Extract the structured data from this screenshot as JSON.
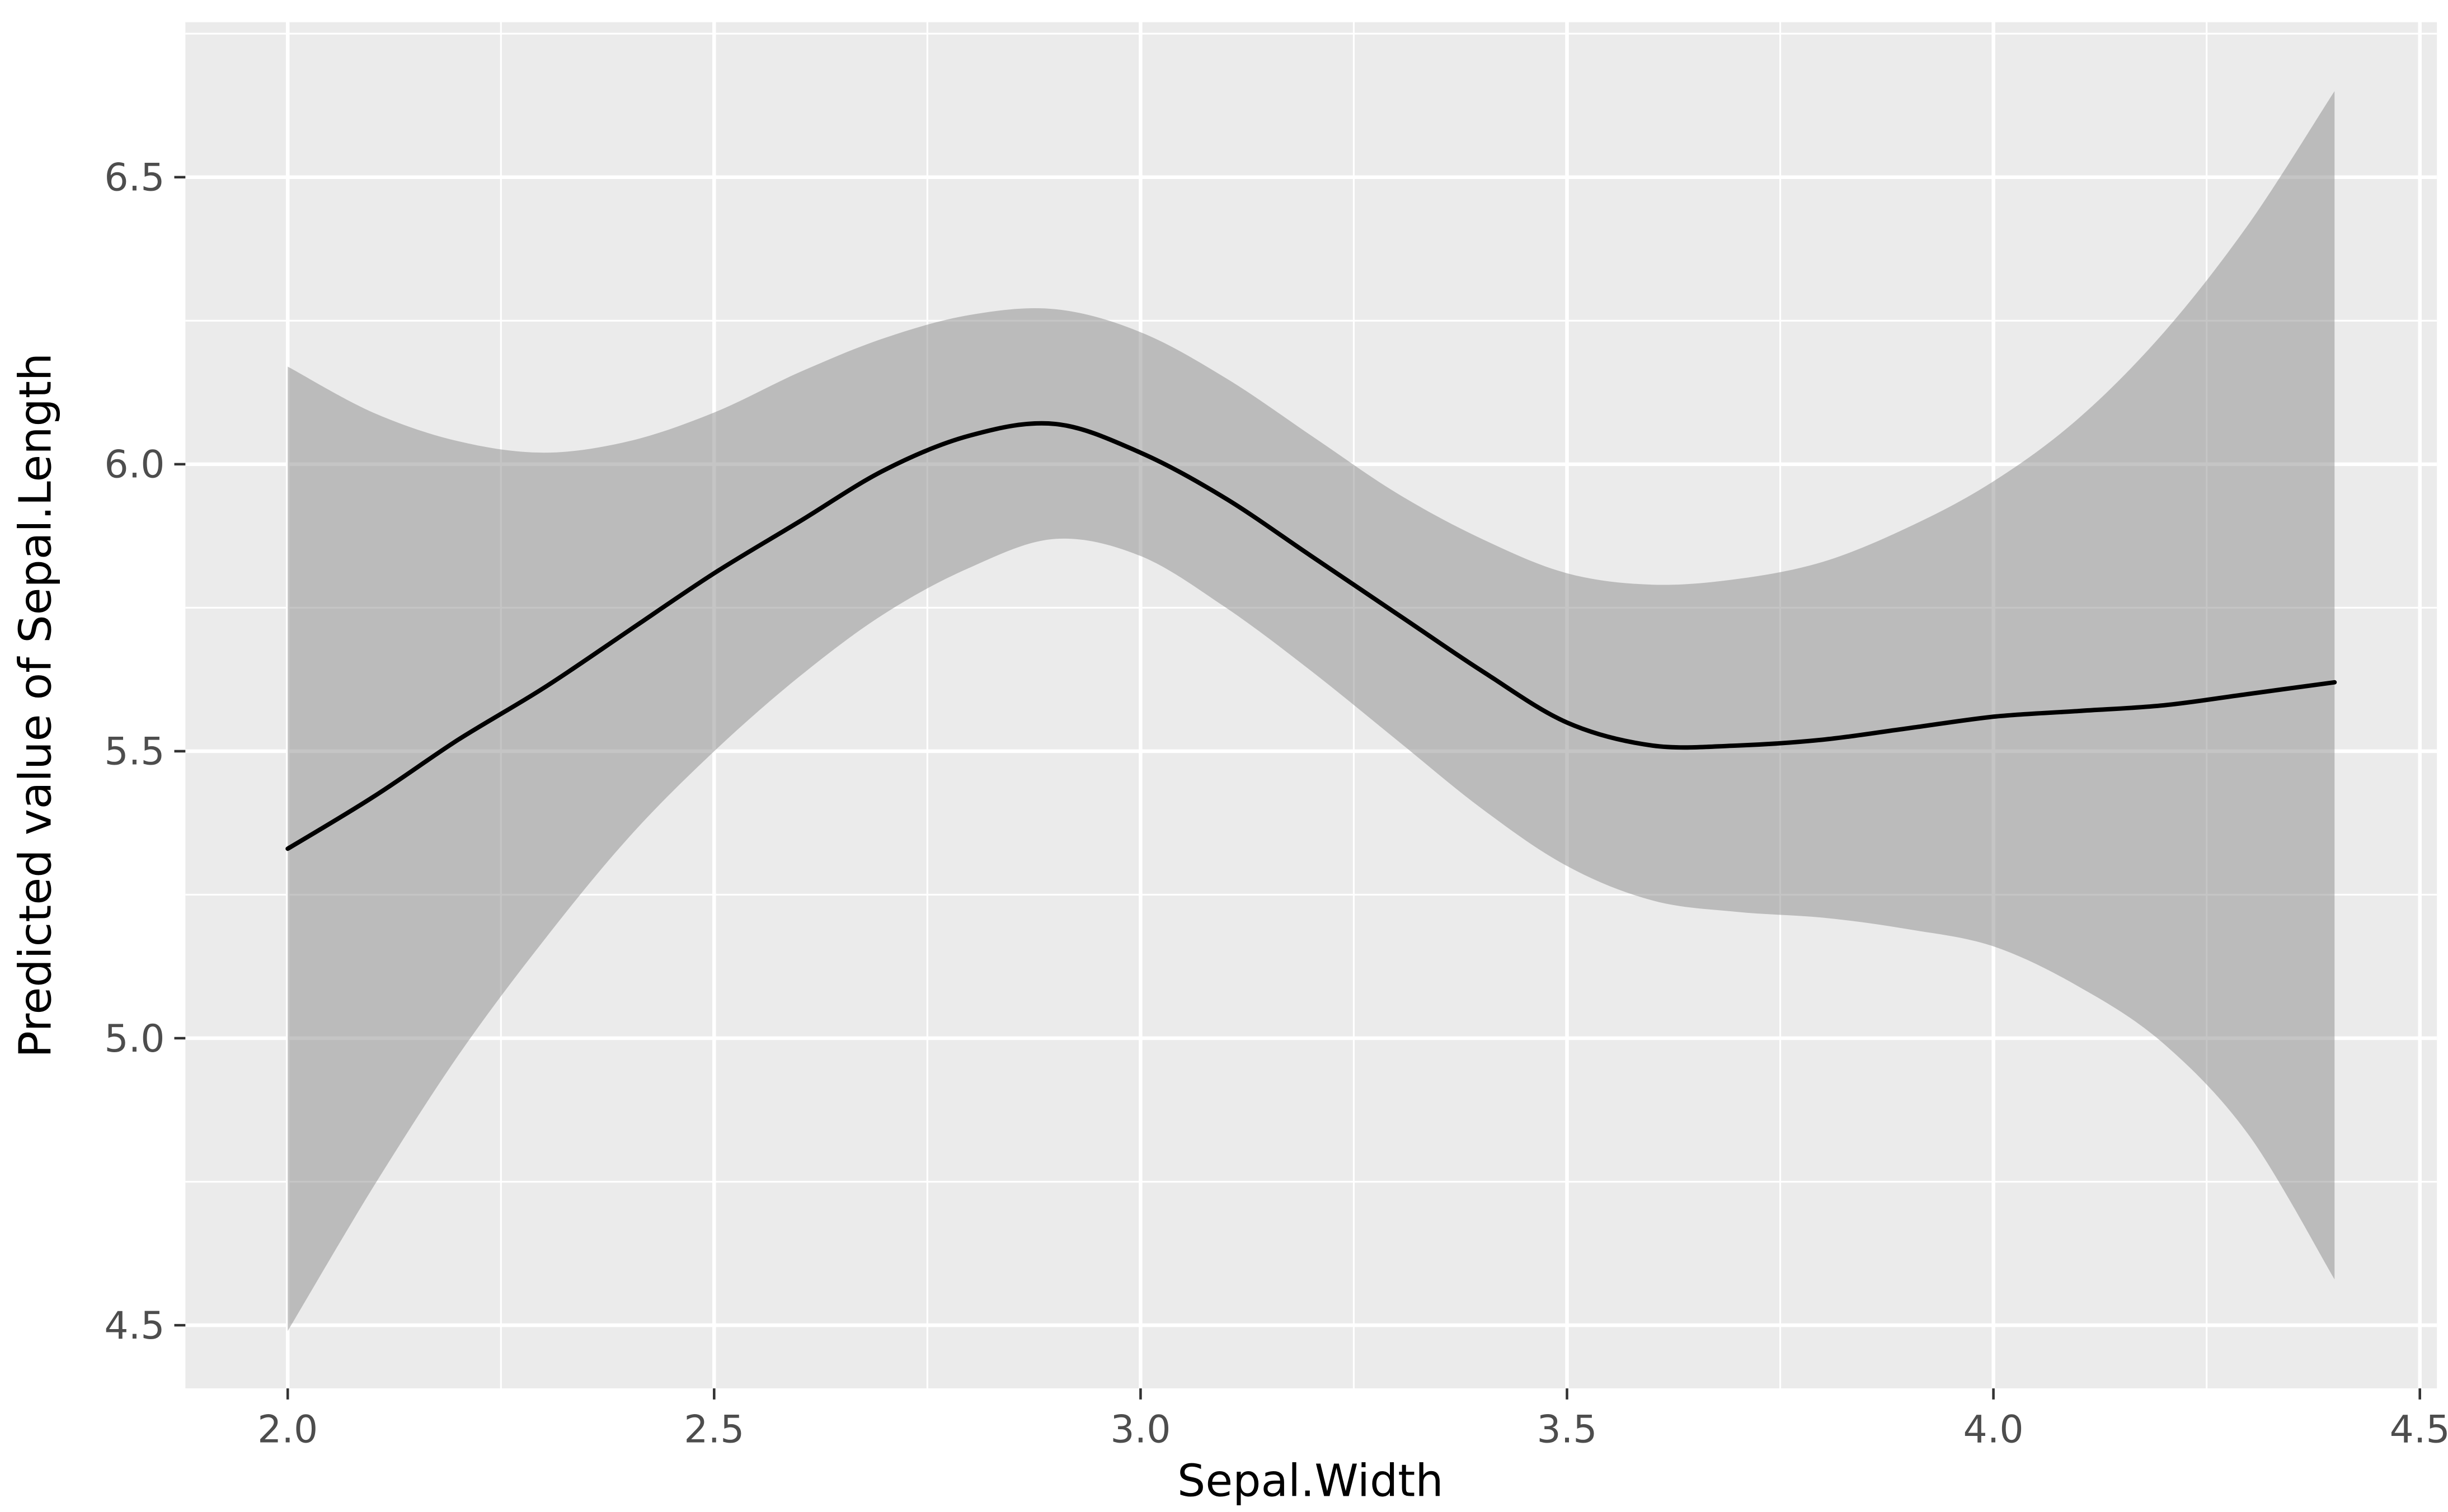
{
  "chart_data": {
    "type": "line",
    "title": "",
    "xlabel": "Sepal.Width",
    "ylabel": "Predicted value of Sepal.Length",
    "xlim": [
      1.88,
      4.52
    ],
    "ylim": [
      4.39,
      6.77
    ],
    "x_ticks": [
      2.0,
      2.5,
      3.0,
      3.5,
      4.0,
      4.5
    ],
    "x_tick_labels": [
      "2.0",
      "2.5",
      "3.0",
      "3.5",
      "4.0",
      "4.5"
    ],
    "y_ticks": [
      4.5,
      5.0,
      5.5,
      6.0,
      6.5
    ],
    "y_tick_labels": [
      "4.5",
      "5.0",
      "5.5",
      "6.0",
      "6.5"
    ],
    "x_minor_ticks": [
      2.25,
      2.75,
      3.25,
      3.75,
      4.25
    ],
    "y_minor_ticks": [
      4.75,
      5.25,
      5.75,
      6.25,
      6.75
    ],
    "grid": true,
    "legend": "none",
    "series": [
      {
        "name": "smooth-fit-with-confidence-band",
        "x": [
          2.0,
          2.1,
          2.2,
          2.3,
          2.4,
          2.5,
          2.6,
          2.7,
          2.8,
          2.9,
          3.0,
          3.1,
          3.2,
          3.3,
          3.4,
          3.5,
          3.6,
          3.7,
          3.8,
          3.9,
          4.0,
          4.1,
          4.2,
          4.3,
          4.4
        ],
        "y": [
          5.33,
          5.42,
          5.52,
          5.61,
          5.71,
          5.81,
          5.9,
          5.99,
          6.05,
          6.07,
          6.02,
          5.94,
          5.84,
          5.74,
          5.64,
          5.55,
          5.51,
          5.51,
          5.52,
          5.54,
          5.56,
          5.57,
          5.58,
          5.6,
          5.62
        ],
        "upper": [
          6.17,
          6.09,
          6.04,
          6.02,
          6.04,
          6.09,
          6.16,
          6.22,
          6.26,
          6.27,
          6.23,
          6.15,
          6.05,
          5.95,
          5.87,
          5.81,
          5.79,
          5.8,
          5.83,
          5.89,
          5.97,
          6.08,
          6.23,
          6.42,
          6.65
        ],
        "lower": [
          4.49,
          4.74,
          4.97,
          5.17,
          5.35,
          5.5,
          5.63,
          5.74,
          5.82,
          5.87,
          5.84,
          5.75,
          5.64,
          5.52,
          5.4,
          5.3,
          5.24,
          5.22,
          5.21,
          5.19,
          5.16,
          5.09,
          4.99,
          4.83,
          4.58
        ]
      }
    ],
    "style": {
      "page_bg": "#FFFFFF",
      "panel_bg": "#EBEBEB",
      "grid_major_color": "#FFFFFF",
      "grid_minor_color": "#FFFFFF",
      "line_color": "#000000",
      "ribbon_fill": "#8C8C8C",
      "ribbon_opacity": "0.5",
      "tick_mark_color": "#333333",
      "tick_label_color": "#4D4D4D",
      "axis_title_color": "#000000"
    }
  }
}
